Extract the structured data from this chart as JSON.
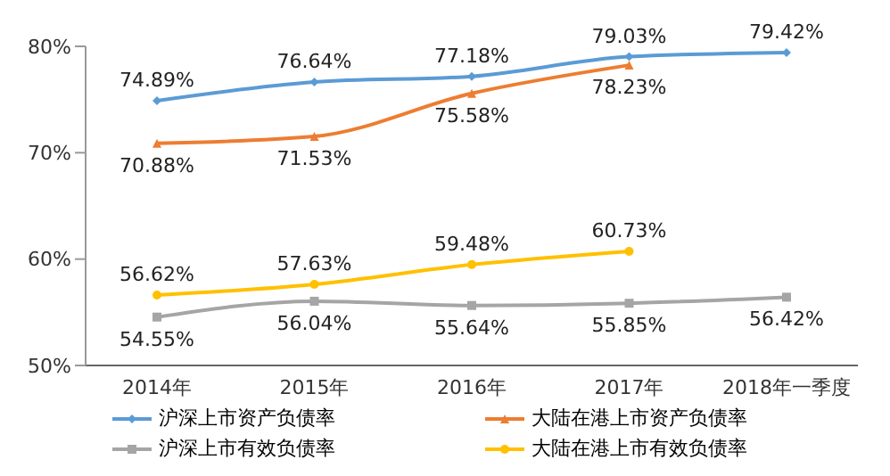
{
  "chart_data": {
    "type": "line",
    "categories": [
      "2014年",
      "2015年",
      "2016年",
      "2017年",
      "2018年一季度"
    ],
    "ylim": [
      50,
      80
    ],
    "yticks": [
      {
        "value": 50,
        "label": "50%"
      },
      {
        "value": 60,
        "label": "60%"
      },
      {
        "value": 70,
        "label": "70%"
      },
      {
        "value": 80,
        "label": "80%"
      }
    ],
    "grid": false,
    "legend": "bottom",
    "series": [
      {
        "name": "沪深上市资产负债率",
        "color": "#5b9bd5",
        "marker": "diamond",
        "values": [
          74.89,
          76.64,
          77.18,
          79.03,
          79.42
        ],
        "value_labels": [
          "74.89%",
          "76.64%",
          "77.18%",
          "79.03%",
          "79.42%"
        ]
      },
      {
        "name": "大陆在港上市资产负债率",
        "color": "#ed7d31",
        "marker": "triangle",
        "values": [
          70.88,
          71.53,
          75.58,
          78.23,
          null
        ],
        "value_labels": [
          "70.88%",
          "71.53%",
          "75.58%",
          "78.23%",
          null
        ]
      },
      {
        "name": "沪深上市有效负债率",
        "color": "#a5a5a5",
        "marker": "square",
        "values": [
          54.55,
          56.04,
          55.64,
          55.85,
          56.42
        ],
        "value_labels": [
          "54.55%",
          "56.04%",
          "55.64%",
          "55.85%",
          "56.42%"
        ]
      },
      {
        "name": "大陆在港上市有效负债率",
        "color": "#ffc000",
        "marker": "circle",
        "values": [
          56.62,
          57.63,
          59.48,
          60.73,
          null
        ],
        "value_labels": [
          "56.62%",
          "57.63%",
          "59.48%",
          "60.73%",
          null
        ]
      }
    ]
  }
}
